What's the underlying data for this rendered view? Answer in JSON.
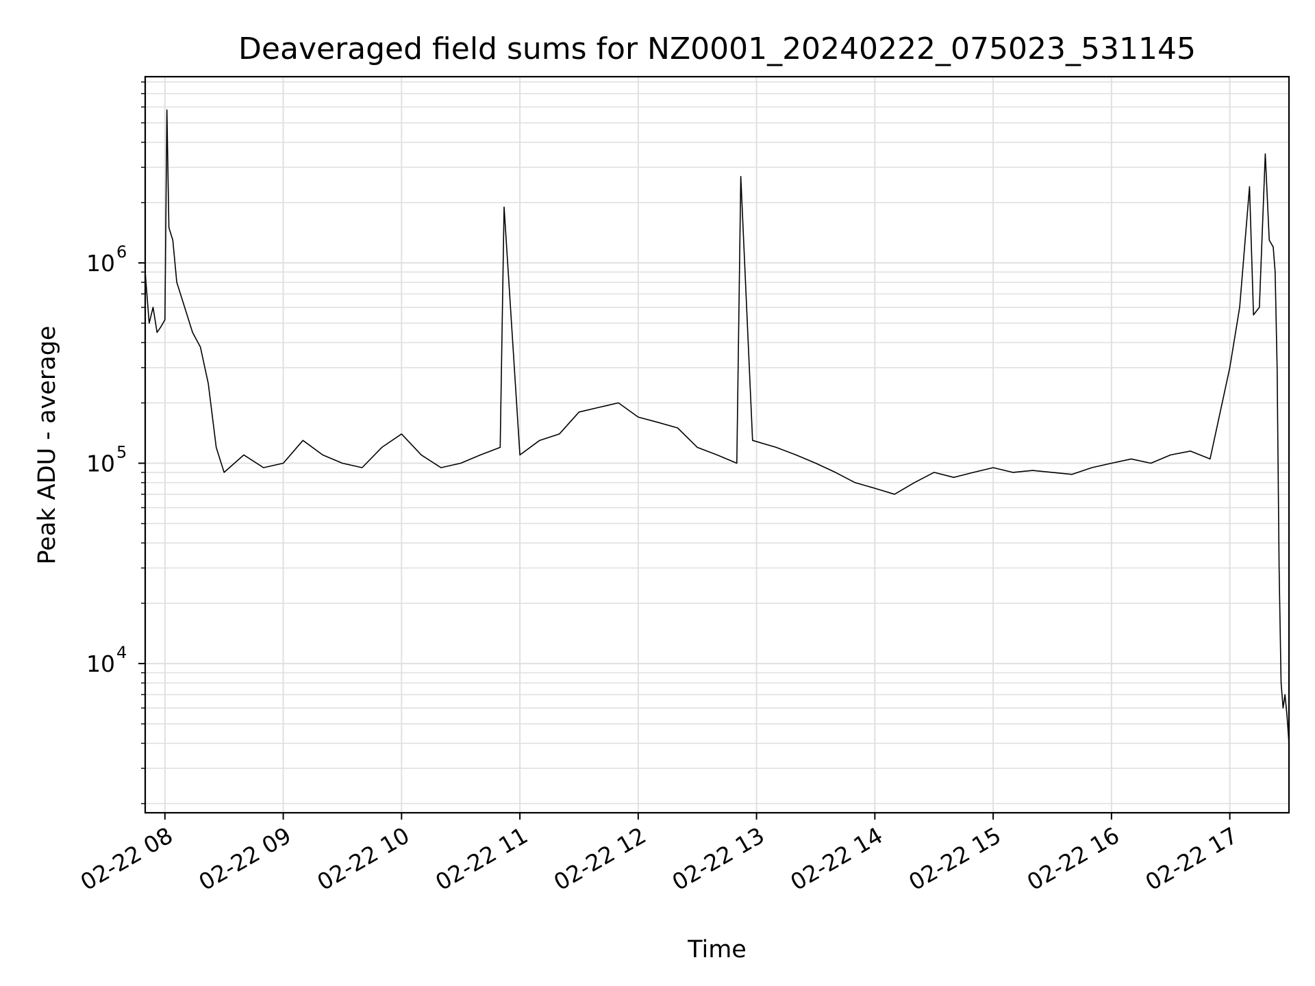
{
  "chart_data": {
    "type": "line",
    "title": "Deaveraged field sums for NZ0001_20240222_075023_531145",
    "xlabel": "Time",
    "ylabel": "Peak ADU - average",
    "yscale": "log",
    "xlim": [
      "2024-02-22 07:50",
      "2024-02-22 17:30"
    ],
    "ylim": [
      1800,
      8500000
    ],
    "x_ticks": [
      "02-22 08",
      "02-22 09",
      "02-22 10",
      "02-22 11",
      "02-22 12",
      "02-22 13",
      "02-22 14",
      "02-22 15",
      "02-22 16",
      "02-22 17"
    ],
    "y_ticks": [
      {
        "base": "10",
        "exp": "4",
        "value": 10000
      },
      {
        "base": "10",
        "exp": "5",
        "value": 100000
      },
      {
        "base": "10",
        "exp": "6",
        "value": 1000000
      }
    ],
    "grid": true,
    "line_color": "#000000",
    "series": [
      {
        "x": [
          "07:50",
          "07:52",
          "07:54",
          "07:56",
          "07:58",
          "08:00",
          "08:01",
          "08:02",
          "08:04",
          "08:06",
          "08:10",
          "08:14",
          "08:18",
          "08:22",
          "08:26",
          "08:30",
          "08:40",
          "08:50",
          "09:00",
          "09:10",
          "09:20",
          "09:30",
          "09:40",
          "09:50",
          "10:00",
          "10:10",
          "10:20",
          "10:30",
          "10:40",
          "10:50",
          "10:52",
          "11:00",
          "11:10",
          "11:20",
          "11:30",
          "11:40",
          "11:50",
          "12:00",
          "12:10",
          "12:20",
          "12:30",
          "12:40",
          "12:50",
          "12:52",
          "12:58",
          "13:10",
          "13:20",
          "13:30",
          "13:40",
          "13:50",
          "14:00",
          "14:10",
          "14:20",
          "14:30",
          "14:40",
          "14:50",
          "15:00",
          "15:10",
          "15:20",
          "15:30",
          "15:40",
          "15:50",
          "16:00",
          "16:10",
          "16:20",
          "16:30",
          "16:40",
          "16:50",
          "17:00",
          "17:05",
          "17:10",
          "17:12",
          "17:15",
          "17:18",
          "17:20",
          "17:22",
          "17:23",
          "17:24",
          "17:25",
          "17:26",
          "17:27",
          "17:28",
          "17:29",
          "17:30"
        ],
        "y": [
          900000,
          500000,
          600000,
          450000,
          480000,
          520000,
          5800000,
          1500000,
          1300000,
          800000,
          600000,
          450000,
          380000,
          250000,
          120000,
          90000,
          110000,
          95000,
          100000,
          130000,
          110000,
          100000,
          95000,
          120000,
          140000,
          110000,
          95000,
          100000,
          110000,
          120000,
          1900000,
          110000,
          130000,
          140000,
          180000,
          190000,
          200000,
          170000,
          160000,
          150000,
          120000,
          110000,
          100000,
          2700000,
          130000,
          120000,
          110000,
          100000,
          90000,
          80000,
          75000,
          70000,
          80000,
          90000,
          85000,
          90000,
          95000,
          90000,
          92000,
          90000,
          88000,
          95000,
          100000,
          105000,
          100000,
          110000,
          115000,
          105000,
          300000,
          600000,
          2400000,
          550000,
          600000,
          3500000,
          1300000,
          1200000,
          900000,
          300000,
          30000,
          8000,
          6000,
          7000,
          5500,
          4000
        ]
      }
    ]
  }
}
